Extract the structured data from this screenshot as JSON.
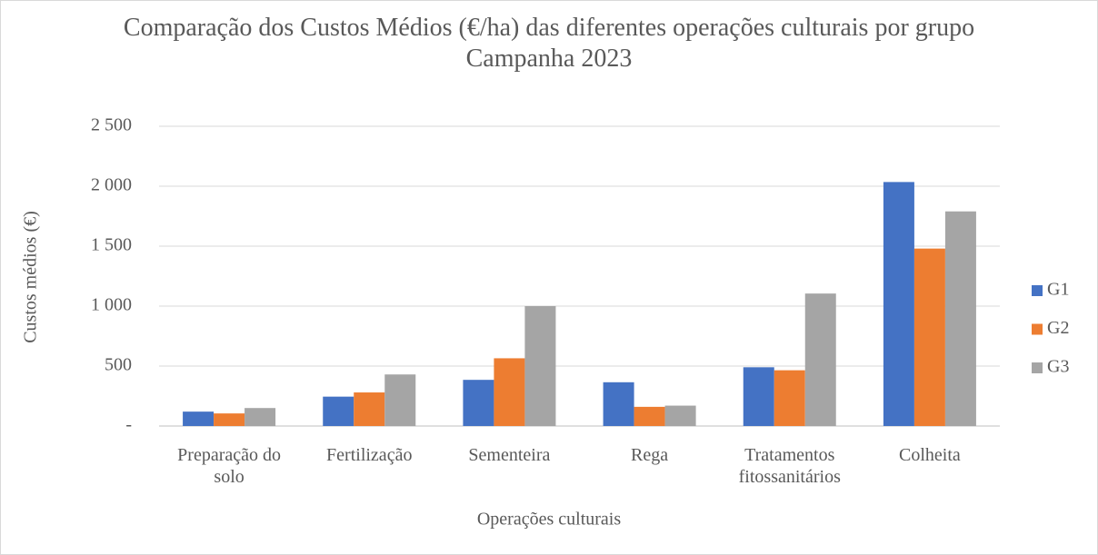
{
  "chart_data": {
    "type": "bar",
    "title": "Comparação dos Custos Médios (€/ha) das diferentes operações culturais por grupo Campanha 2023",
    "x_label": "Operações culturais",
    "y_label": "Custos médios (€)",
    "categories": [
      "Preparação do solo",
      "Fertilização",
      "Sementeira",
      "Rega",
      "Tratamentos fitossanitários",
      "Colheita"
    ],
    "series": [
      {
        "name": "G1",
        "color": "#4472c4",
        "values": [
          120,
          245,
          385,
          365,
          490,
          2035
        ]
      },
      {
        "name": "G2",
        "color": "#ed7d31",
        "values": [
          105,
          280,
          565,
          160,
          465,
          1480
        ]
      },
      {
        "name": "G3",
        "color": "#a5a5a5",
        "values": [
          150,
          430,
          1000,
          170,
          1105,
          1790
        ]
      }
    ],
    "ylim": [
      0,
      2500
    ],
    "yticks": [
      {
        "value": 0,
        "label": "-"
      },
      500,
      {
        "value": 1000,
        "label": "1 000"
      },
      {
        "value": 1500,
        "label": "1 500"
      },
      {
        "value": 2000,
        "label": "2 000"
      },
      {
        "value": 2500,
        "label": "2 500"
      }
    ],
    "grid": true,
    "legend": "right"
  }
}
